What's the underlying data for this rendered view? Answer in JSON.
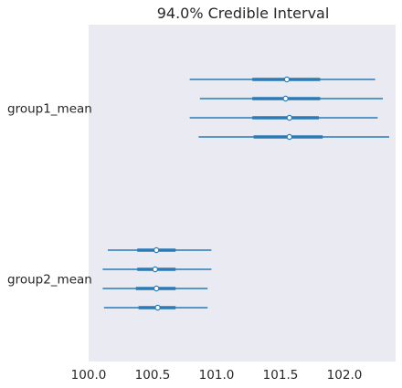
{
  "chart_data": {
    "type": "forest",
    "title": "94.0% Credible Interval",
    "xlabel": "",
    "ylabel": "",
    "xlim": [
      100.0,
      102.4
    ],
    "xticks": [
      "100.0",
      "100.5",
      "101.0",
      "101.5",
      "102.0"
    ],
    "grid": false,
    "interval_label": "94.0%",
    "colors": {
      "background": "#eaeaf2",
      "line": "#2a7ab5",
      "point_fill": "#ffffff"
    },
    "groups": [
      {
        "name": "group1_mean",
        "chains": [
          {
            "hdi_low": 100.79,
            "iqr_low": 101.28,
            "median": 101.55,
            "iqr_high": 101.81,
            "hdi_high": 102.24
          },
          {
            "hdi_low": 100.87,
            "iqr_low": 101.28,
            "median": 101.54,
            "iqr_high": 101.81,
            "hdi_high": 102.3
          },
          {
            "hdi_low": 100.79,
            "iqr_low": 101.28,
            "median": 101.57,
            "iqr_high": 101.8,
            "hdi_high": 102.26
          },
          {
            "hdi_low": 100.86,
            "iqr_low": 101.29,
            "median": 101.57,
            "iqr_high": 101.83,
            "hdi_high": 102.35
          }
        ]
      },
      {
        "name": "group2_mean",
        "chains": [
          {
            "hdi_low": 100.15,
            "iqr_low": 100.38,
            "median": 100.53,
            "iqr_high": 100.68,
            "hdi_high": 100.96
          },
          {
            "hdi_low": 100.11,
            "iqr_low": 100.38,
            "median": 100.52,
            "iqr_high": 100.68,
            "hdi_high": 100.96
          },
          {
            "hdi_low": 100.11,
            "iqr_low": 100.37,
            "median": 100.53,
            "iqr_high": 100.68,
            "hdi_high": 100.93
          },
          {
            "hdi_low": 100.12,
            "iqr_low": 100.39,
            "median": 100.54,
            "iqr_high": 100.68,
            "hdi_high": 100.93
          }
        ]
      }
    ]
  }
}
